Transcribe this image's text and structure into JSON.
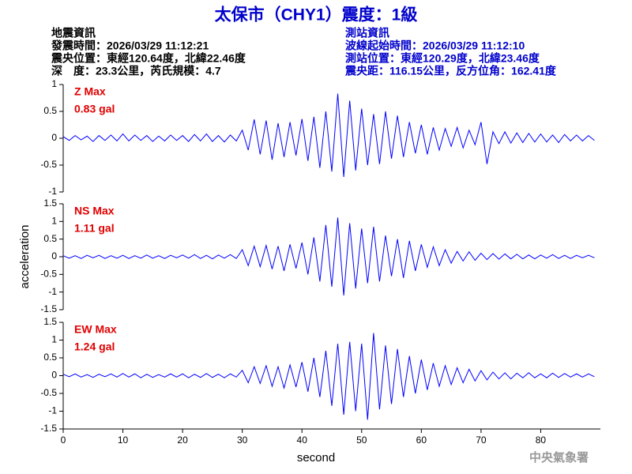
{
  "header": {
    "title": "太保市（CHY1）震度：1級",
    "left": [
      "地震資訊",
      "發震時間：2026/03/29 11:12:21",
      "震央位置：東經120.64度，北緯22.46度",
      "深　度：23.3公里，芮氏規模：4.7"
    ],
    "right": [
      "測站資訊",
      "波線起始時間：2026/03/29 11:12:10",
      "測站位置：東經120.29度，北緯23.46度",
      "震央距：116.15公里，反方位角：162.41度"
    ],
    "footer": "中央氣象署"
  },
  "chart_data": [
    {
      "type": "line",
      "annotations": [
        "Z Max",
        "0.83 gal"
      ],
      "color": "#0000ff",
      "ylim": [
        -1,
        1
      ],
      "yticks": [
        -1,
        -0.5,
        0,
        0.5,
        1
      ],
      "xlim": [
        0,
        90
      ],
      "x": [
        0,
        1,
        2,
        3,
        4,
        5,
        6,
        7,
        8,
        9,
        10,
        11,
        12,
        13,
        14,
        15,
        16,
        17,
        18,
        19,
        20,
        21,
        22,
        23,
        24,
        25,
        26,
        27,
        28,
        29,
        30,
        31,
        32,
        33,
        34,
        35,
        36,
        37,
        38,
        39,
        40,
        41,
        42,
        43,
        44,
        45,
        46,
        47,
        48,
        49,
        50,
        51,
        52,
        53,
        54,
        55,
        56,
        57,
        58,
        59,
        60,
        61,
        62,
        63,
        64,
        65,
        66,
        67,
        68,
        69,
        70,
        71,
        72,
        73,
        74,
        75,
        76,
        77,
        78,
        79,
        80,
        81,
        82,
        83,
        84,
        85,
        86,
        87,
        88,
        89
      ],
      "values": [
        0.03,
        -0.04,
        0.05,
        -0.03,
        0.04,
        -0.06,
        0.05,
        -0.04,
        0.06,
        -0.05,
        0.08,
        -0.05,
        0.06,
        -0.04,
        0.05,
        -0.06,
        0.04,
        -0.05,
        0.06,
        -0.04,
        0.05,
        -0.06,
        0.07,
        -0.05,
        0.08,
        -0.06,
        0.05,
        -0.07,
        0.06,
        -0.05,
        0.15,
        -0.22,
        0.35,
        -0.3,
        0.33,
        -0.4,
        0.28,
        -0.35,
        0.3,
        -0.32,
        0.36,
        -0.42,
        0.4,
        -0.55,
        0.5,
        -0.62,
        0.83,
        -0.72,
        0.7,
        -0.6,
        0.55,
        -0.5,
        0.45,
        -0.48,
        0.5,
        -0.38,
        0.42,
        -0.35,
        0.3,
        -0.28,
        0.25,
        -0.3,
        0.2,
        -0.22,
        0.18,
        -0.15,
        0.2,
        -0.18,
        0.15,
        -0.12,
        0.3,
        -0.48,
        0.12,
        -0.1,
        0.12,
        -0.09,
        0.1,
        -0.08,
        0.09,
        -0.07,
        0.08,
        -0.07,
        0.06,
        -0.08,
        0.07,
        -0.05,
        0.06,
        -0.05,
        0.05,
        -0.04
      ]
    },
    {
      "type": "line",
      "annotations": [
        "NS Max",
        "1.11 gal"
      ],
      "color": "#0000ff",
      "ylabel": "acceleration",
      "ylim": [
        -1.5,
        1.5
      ],
      "yticks": [
        -1.5,
        -1,
        -0.5,
        0,
        0.5,
        1,
        1.5
      ],
      "xlim": [
        0,
        90
      ],
      "x": [
        0,
        1,
        2,
        3,
        4,
        5,
        6,
        7,
        8,
        9,
        10,
        11,
        12,
        13,
        14,
        15,
        16,
        17,
        18,
        19,
        20,
        21,
        22,
        23,
        24,
        25,
        26,
        27,
        28,
        29,
        30,
        31,
        32,
        33,
        34,
        35,
        36,
        37,
        38,
        39,
        40,
        41,
        42,
        43,
        44,
        45,
        46,
        47,
        48,
        49,
        50,
        51,
        52,
        53,
        54,
        55,
        56,
        57,
        58,
        59,
        60,
        61,
        62,
        63,
        64,
        65,
        66,
        67,
        68,
        69,
        70,
        71,
        72,
        73,
        74,
        75,
        76,
        77,
        78,
        79,
        80,
        81,
        82,
        83,
        84,
        85,
        86,
        87,
        88,
        89
      ],
      "values": [
        0.03,
        -0.04,
        0.03,
        -0.05,
        0.04,
        -0.03,
        0.04,
        -0.05,
        0.03,
        -0.04,
        0.04,
        -0.05,
        0.03,
        -0.04,
        0.05,
        -0.04,
        0.03,
        -0.05,
        0.04,
        -0.03,
        0.05,
        -0.04,
        0.06,
        -0.05,
        0.04,
        -0.06,
        0.05,
        -0.04,
        0.06,
        -0.05,
        0.2,
        -0.25,
        0.3,
        -0.28,
        0.32,
        -0.35,
        0.3,
        -0.4,
        0.35,
        -0.33,
        0.4,
        -0.5,
        0.55,
        -0.7,
        0.9,
        -0.85,
        1.11,
        -1.1,
        0.95,
        -0.9,
        0.8,
        -0.75,
        0.85,
        -0.7,
        0.6,
        -0.55,
        0.5,
        -0.6,
        0.45,
        -0.4,
        0.35,
        -0.3,
        0.28,
        -0.25,
        0.2,
        -0.18,
        0.15,
        -0.12,
        0.14,
        -0.1,
        0.1,
        -0.08,
        0.09,
        -0.07,
        0.08,
        -0.06,
        0.07,
        -0.06,
        0.05,
        -0.06,
        0.05,
        -0.04,
        0.06,
        -0.05,
        0.04,
        -0.05,
        0.04,
        -0.03,
        0.04,
        -0.03
      ]
    },
    {
      "type": "line",
      "annotations": [
        "EW Max",
        "1.24 gal"
      ],
      "color": "#0000ff",
      "xlabel": "second",
      "ylim": [
        -1.5,
        1.5
      ],
      "yticks": [
        -1.5,
        -1,
        -0.5,
        0,
        0.5,
        1,
        1.5
      ],
      "xlim": [
        0,
        90
      ],
      "xticks": [
        0,
        10,
        20,
        30,
        40,
        50,
        60,
        70,
        80
      ],
      "x": [
        0,
        1,
        2,
        3,
        4,
        5,
        6,
        7,
        8,
        9,
        10,
        11,
        12,
        13,
        14,
        15,
        16,
        17,
        18,
        19,
        20,
        21,
        22,
        23,
        24,
        25,
        26,
        27,
        28,
        29,
        30,
        31,
        32,
        33,
        34,
        35,
        36,
        37,
        38,
        39,
        40,
        41,
        42,
        43,
        44,
        45,
        46,
        47,
        48,
        49,
        50,
        51,
        52,
        53,
        54,
        55,
        56,
        57,
        58,
        59,
        60,
        61,
        62,
        63,
        64,
        65,
        66,
        67,
        68,
        69,
        70,
        71,
        72,
        73,
        74,
        75,
        76,
        77,
        78,
        79,
        80,
        81,
        82,
        83,
        84,
        85,
        86,
        87,
        88,
        89
      ],
      "values": [
        0.04,
        -0.03,
        0.05,
        -0.04,
        0.03,
        -0.05,
        0.04,
        -0.03,
        0.05,
        -0.04,
        0.06,
        -0.04,
        0.05,
        -0.06,
        0.04,
        -0.05,
        0.03,
        -0.04,
        0.05,
        -0.04,
        0.05,
        -0.06,
        0.04,
        -0.05,
        0.06,
        -0.05,
        0.04,
        -0.06,
        0.05,
        -0.04,
        0.15,
        -0.2,
        0.25,
        -0.22,
        0.28,
        -0.3,
        0.25,
        -0.35,
        0.3,
        -0.32,
        0.38,
        -0.45,
        0.5,
        -0.6,
        0.7,
        -0.85,
        0.9,
        -1.1,
        0.95,
        -1.0,
        0.9,
        -1.24,
        1.2,
        -0.95,
        0.85,
        -0.8,
        0.75,
        -0.6,
        0.55,
        -0.5,
        0.45,
        -0.4,
        0.35,
        -0.3,
        0.28,
        -0.25,
        0.22,
        -0.2,
        0.18,
        -0.15,
        0.14,
        -0.12,
        0.1,
        -0.09,
        0.08,
        -0.09,
        0.07,
        -0.06,
        0.08,
        -0.06,
        0.05,
        -0.06,
        0.07,
        -0.05,
        0.06,
        -0.04,
        0.05,
        -0.04,
        0.05,
        -0.03
      ]
    }
  ]
}
